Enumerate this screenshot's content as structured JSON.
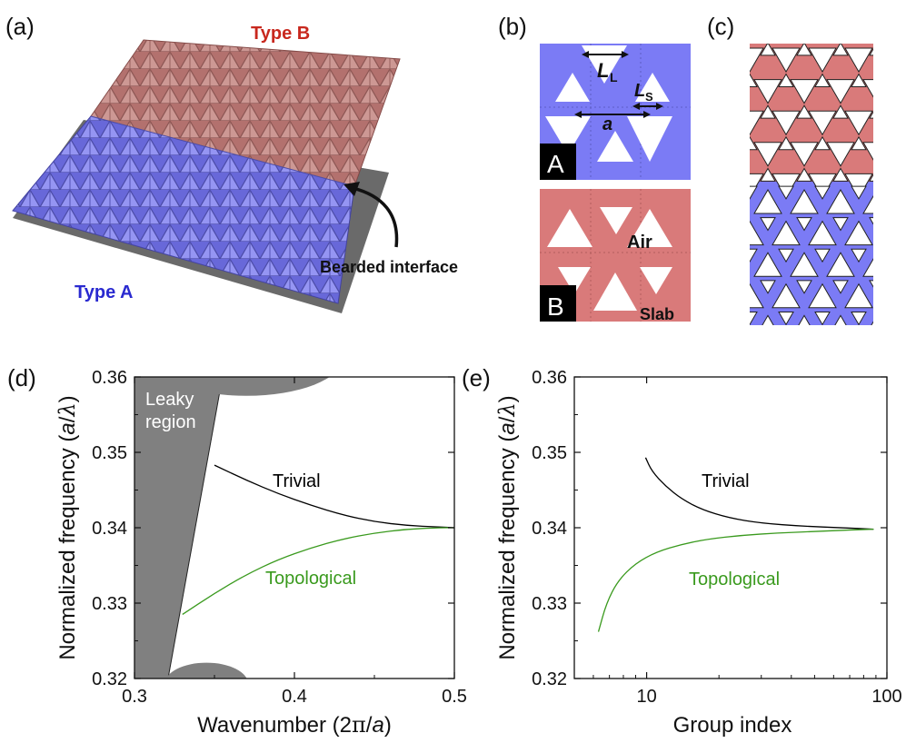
{
  "panels": {
    "a": {
      "label": "(a)",
      "type_b": "Type B",
      "type_a": "Type A",
      "interface": "Bearded interface",
      "color_a": "#6f6ff0",
      "color_b": "#b86a66"
    },
    "b": {
      "label": "(b)",
      "dim_large": "L",
      "dim_large_sub": "L",
      "dim_small": "L",
      "dim_small_sub": "S",
      "dim_period": "a",
      "tag_a": "A",
      "tag_b": "B",
      "air": "Air",
      "slab": "Slab",
      "color_a": "#7b7bf5",
      "color_b": "#d97a7a"
    },
    "c": {
      "label": "(c)",
      "color_a": "#7b7bf5",
      "color_b": "#d97a7a"
    },
    "d": {
      "label": "(d)",
      "leaky": [
        "Leaky",
        "region"
      ]
    },
    "e": {
      "label": "(e)"
    }
  },
  "chart_data": [
    {
      "panel": "d",
      "type": "line",
      "xlabel": "Wavenumber (2π/a)",
      "ylabel": "Normalized frequency (a/λ)",
      "xlim": [
        0.3,
        0.5
      ],
      "ylim": [
        0.32,
        0.36
      ],
      "xticks": [
        "0.3",
        "0.4",
        "0.5"
      ],
      "yticks": [
        "0.32",
        "0.33",
        "0.34",
        "0.35",
        "0.36"
      ],
      "series": [
        {
          "name": "Trivial",
          "color": "#000000",
          "x": [
            0.35,
            0.37,
            0.39,
            0.41,
            0.43,
            0.45,
            0.47,
            0.49,
            0.5
          ],
          "y": [
            0.3483,
            0.3463,
            0.3445,
            0.343,
            0.3417,
            0.3408,
            0.3403,
            0.3401,
            0.34
          ]
        },
        {
          "name": "Topological",
          "color": "#3a9a1e",
          "x": [
            0.33,
            0.35,
            0.37,
            0.39,
            0.41,
            0.43,
            0.45,
            0.47,
            0.49,
            0.5
          ],
          "y": [
            0.3285,
            0.3313,
            0.3338,
            0.3358,
            0.3373,
            0.3385,
            0.3393,
            0.3398,
            0.34,
            0.34
          ]
        }
      ],
      "light_line": {
        "x": [
          0.321,
          0.355
        ],
        "y": [
          0.32,
          0.36
        ]
      }
    },
    {
      "panel": "e",
      "type": "line",
      "xlabel": "Group index",
      "ylabel": "Normalized frequency (a/λ)",
      "xscale": "log",
      "xlim": [
        5,
        100
      ],
      "ylim": [
        0.32,
        0.36
      ],
      "xticks": [
        "10",
        "100"
      ],
      "yticks": [
        "0.32",
        "0.33",
        "0.34",
        "0.35",
        "0.36"
      ],
      "series": [
        {
          "name": "Trivial",
          "color": "#000000",
          "x": [
            9.9,
            10.5,
            12,
            14,
            17,
            22,
            30,
            45,
            65,
            88
          ],
          "y": [
            0.3493,
            0.3475,
            0.3455,
            0.3438,
            0.3424,
            0.3413,
            0.3406,
            0.3402,
            0.34,
            0.3398
          ]
        },
        {
          "name": "Topological",
          "color": "#3a9a1e",
          "x": [
            6.3,
            6.8,
            7.6,
            9,
            11,
            14,
            18,
            25,
            35,
            50,
            70,
            88
          ],
          "y": [
            0.3262,
            0.33,
            0.333,
            0.3353,
            0.3368,
            0.3378,
            0.3385,
            0.339,
            0.3393,
            0.3395,
            0.3397,
            0.3398
          ]
        }
      ]
    }
  ]
}
